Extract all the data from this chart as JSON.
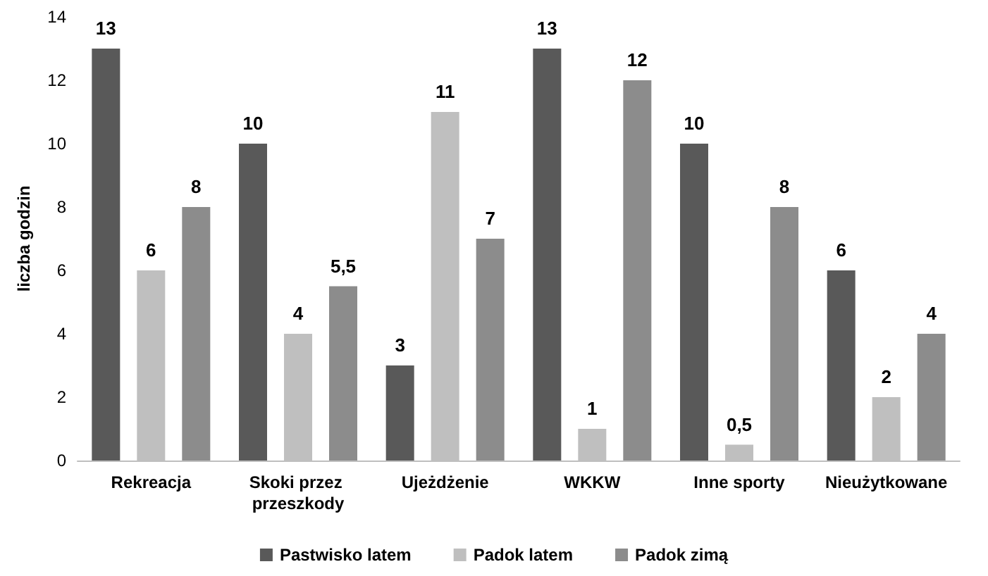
{
  "chart_data": {
    "type": "bar",
    "ylabel": "liczba godzin",
    "categories": [
      "Rekreacja",
      "Skoki przez przeszkody",
      "Ujeżdżenie",
      "WKKW",
      "Inne sporty",
      "Nieużytkowane"
    ],
    "series": [
      {
        "name": "Pastwisko latem",
        "color": "#595959",
        "values": [
          13,
          10,
          3,
          13,
          10,
          6
        ],
        "value_labels": [
          "13",
          "10",
          "3",
          "13",
          "10",
          "6"
        ]
      },
      {
        "name": "Padok latem",
        "color": "#bfbfbf",
        "values": [
          6,
          4,
          11,
          1,
          0.5,
          2
        ],
        "value_labels": [
          "6",
          "4",
          "11",
          "1",
          "0,5",
          "2"
        ]
      },
      {
        "name": "Padok zimą",
        "color": "#8c8c8c",
        "values": [
          8,
          5.5,
          7,
          12,
          8,
          4
        ],
        "value_labels": [
          "8",
          "5,5",
          "7",
          "12",
          "8",
          "4"
        ]
      }
    ],
    "ylim": [
      0,
      14
    ],
    "yticks": [
      0,
      2,
      4,
      6,
      8,
      10,
      12,
      14
    ],
    "grid": false,
    "legend": "bottom"
  }
}
